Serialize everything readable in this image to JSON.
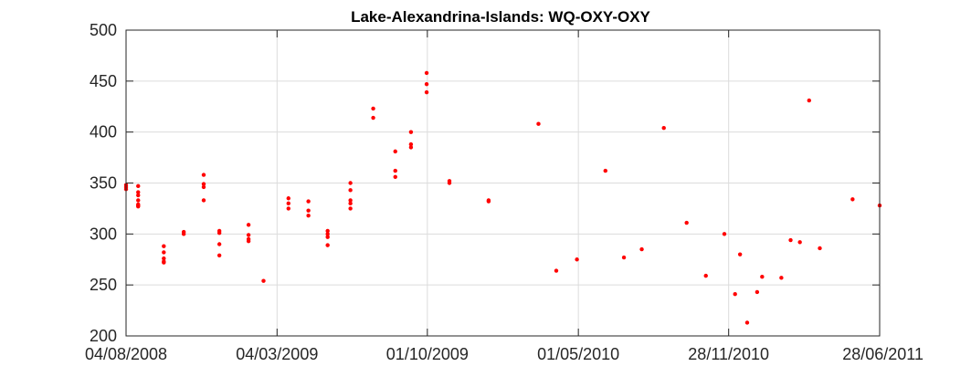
{
  "chart_data": {
    "type": "scatter",
    "title": "Lake-Alexandrina-Islands: WQ-OXY-OXY",
    "xlabel": "",
    "ylabel": "",
    "xlim": [
      "2008-08-04",
      "2011-06-28"
    ],
    "ylim": [
      200,
      500
    ],
    "x_ticks": [
      "2008-08-04",
      "2009-03-04",
      "2009-10-01",
      "2010-05-01",
      "2010-11-28",
      "2011-06-28"
    ],
    "x_tick_labels": [
      "04/08/2008",
      "04/03/2009",
      "01/10/2009",
      "01/05/2010",
      "28/11/2010",
      "28/06/2011"
    ],
    "y_ticks": [
      200,
      250,
      300,
      350,
      400,
      450,
      500
    ],
    "y_tick_labels": [
      "200",
      "250",
      "300",
      "350",
      "400",
      "450",
      "500"
    ],
    "grid": true,
    "colors": {
      "series": "#ff0000",
      "grid": "#dcdcdc",
      "axis": "#262626"
    },
    "series": [
      {
        "x": [
          "2008-08-04",
          "2008-08-04",
          "2008-08-04",
          "2008-08-21",
          "2008-08-21",
          "2008-08-21",
          "2008-08-21",
          "2008-08-21",
          "2008-08-21",
          "2008-08-21",
          "2008-09-26",
          "2008-09-26",
          "2008-09-26",
          "2008-09-26",
          "2008-09-26",
          "2008-10-24",
          "2008-10-24",
          "2008-11-21",
          "2008-11-21",
          "2008-11-21",
          "2008-11-21",
          "2008-12-13",
          "2008-12-13",
          "2008-12-13",
          "2008-12-13",
          "2009-01-23",
          "2009-01-23",
          "2009-01-23",
          "2009-01-23",
          "2009-02-13",
          "2009-03-20",
          "2009-03-20",
          "2009-03-20",
          "2009-04-17",
          "2009-04-17",
          "2009-04-17",
          "2009-05-14",
          "2009-05-14",
          "2009-05-14",
          "2009-05-14",
          "2009-06-15",
          "2009-06-15",
          "2009-06-15",
          "2009-06-15",
          "2009-06-15",
          "2009-07-17",
          "2009-07-17",
          "2009-08-17",
          "2009-08-17",
          "2009-08-17",
          "2009-09-08",
          "2009-09-08",
          "2009-09-08",
          "2009-09-30",
          "2009-09-30",
          "2009-09-30",
          "2009-11-01",
          "2009-11-01",
          "2009-12-26",
          "2009-12-26",
          "2010-03-06",
          "2010-03-31",
          "2010-04-29",
          "2010-06-08",
          "2010-07-04",
          "2010-07-29",
          "2010-08-29",
          "2010-09-30",
          "2010-10-27",
          "2010-11-22",
          "2010-12-07",
          "2010-12-14",
          "2010-12-24",
          "2011-01-07",
          "2011-01-14",
          "2011-02-10",
          "2011-02-23",
          "2011-03-08",
          "2011-03-21",
          "2011-04-05",
          "2011-05-21",
          "2011-06-28"
        ],
        "y": [
          344,
          346,
          348,
          347,
          341,
          338,
          333,
          329,
          328,
          327,
          288,
          282,
          276,
          273,
          272,
          302,
          300,
          358,
          349,
          346,
          333,
          303,
          301,
          290,
          279,
          309,
          299,
          295,
          293,
          254,
          335,
          330,
          325,
          332,
          323,
          318,
          303,
          300,
          297,
          289,
          350,
          343,
          333,
          330,
          325,
          423,
          414,
          381,
          362,
          356,
          400,
          388,
          385,
          458,
          447,
          439,
          352,
          350,
          333,
          332,
          408,
          264,
          275,
          362,
          277,
          285,
          404,
          311,
          259,
          300,
          241,
          280,
          213,
          243,
          258,
          257,
          294,
          292,
          431,
          286,
          334,
          328
        ]
      }
    ]
  }
}
